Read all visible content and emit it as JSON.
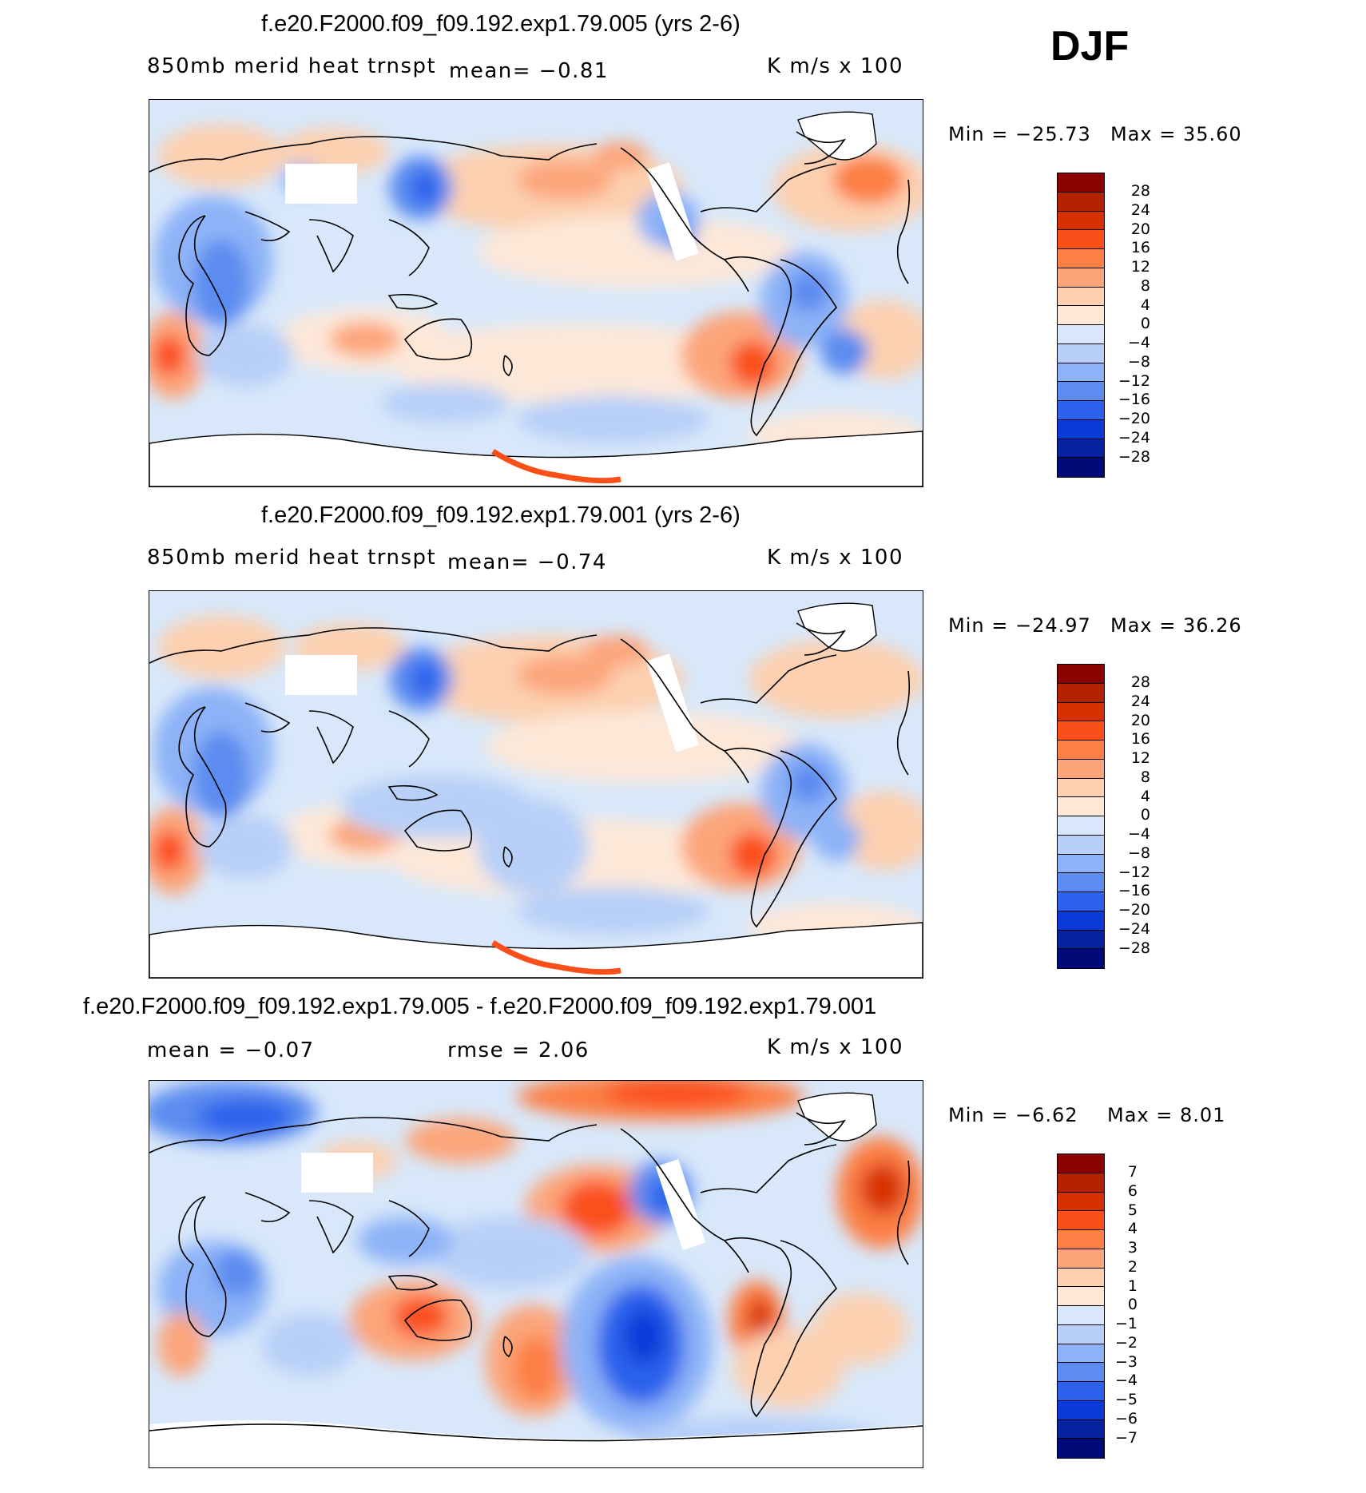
{
  "season": "DJF",
  "panels": [
    {
      "title": "f.e20.F2000.f09_f09.192.exp1.79.005 (yrs 2-6)",
      "variable": "850mb  merid  heat  trnspt",
      "stat1": "mean=   −0.81",
      "stat2": "",
      "units": "K  m/s  x  100",
      "min_label": "Min  =  −25.73",
      "max_label": "Max  =    35.60",
      "colorbar_ticks": [
        "28",
        "24",
        "20",
        "16",
        "12",
        "8",
        "4",
        "0",
        "−4",
        "−8",
        "−12",
        "−16",
        "−20",
        "−24",
        "−28"
      ]
    },
    {
      "title": "f.e20.F2000.f09_f09.192.exp1.79.001 (yrs 2-6)",
      "variable": "850mb  merid  heat  trnspt",
      "stat1": "mean=   −0.74",
      "stat2": "",
      "units": "K  m/s  x  100",
      "min_label": "Min  =  −24.97",
      "max_label": "Max  =    36.26",
      "colorbar_ticks": [
        "28",
        "24",
        "20",
        "16",
        "12",
        "8",
        "4",
        "0",
        "−4",
        "−8",
        "−12",
        "−16",
        "−20",
        "−24",
        "−28"
      ]
    },
    {
      "title": "f.e20.F2000.f09_f09.192.exp1.79.005 - f.e20.F2000.f09_f09.192.exp1.79.001",
      "variable": "",
      "stat1": "mean  =    −0.07",
      "stat2": "rmse  =     2.06",
      "units": "K  m/s  x  100",
      "min_label": "Min  =    −6.62",
      "max_label": "Max  =     8.01",
      "colorbar_ticks": [
        "7",
        "6",
        "5",
        "4",
        "3",
        "2",
        "1",
        "0",
        "−1",
        "−2",
        "−3",
        "−4",
        "−5",
        "−6",
        "−7"
      ]
    }
  ],
  "palette": [
    "#8b0000",
    "#b22200",
    "#d73000",
    "#fb4f1a",
    "#fc7f45",
    "#fca57a",
    "#fcd0b0",
    "#fde8d8",
    "#d8e8fa",
    "#b8d0f8",
    "#8db2f7",
    "#5c8cf0",
    "#2c62ec",
    "#0c3ad8",
    "#06229e",
    "#020a78"
  ]
}
